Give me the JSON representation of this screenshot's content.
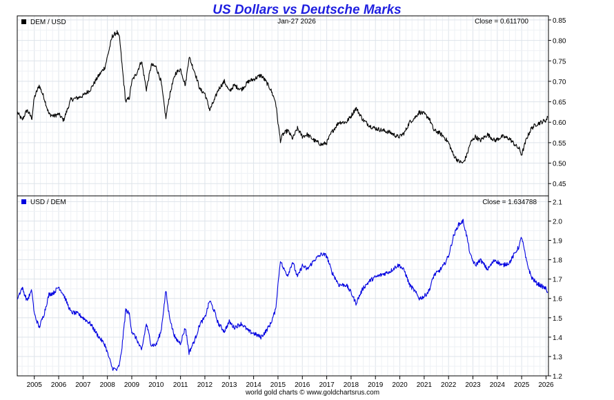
{
  "page": {
    "title": "US Dollars vs Deutsche Marks",
    "footer": "world gold charts © www.goldchartsrus.com",
    "title_color": "#1f1fe0"
  },
  "chart_data": [
    {
      "type": "line",
      "panel": "top",
      "legend": "DEM / USD",
      "date_label": "Jan-27  2026",
      "close_label": "Close = 0.611700",
      "color": "#000000",
      "ylim": [
        0.42,
        0.86
      ],
      "yticks": [
        0.45,
        0.5,
        0.55,
        0.6,
        0.65,
        0.7,
        0.75,
        0.8,
        0.85
      ],
      "ytick_labels": [
        "0.45",
        "0.50",
        "0.55",
        "0.60",
        "0.65",
        "0.70",
        "0.75",
        "0.80",
        "0.85"
      ],
      "xlim": [
        2004.3,
        2026.1
      ],
      "x": [
        2004.3,
        2004.5,
        2004.7,
        2004.9,
        2005.0,
        2005.2,
        2005.4,
        2005.6,
        2005.8,
        2006.0,
        2006.2,
        2006.5,
        2006.8,
        2007.0,
        2007.3,
        2007.6,
        2007.9,
        2008.0,
        2008.2,
        2008.4,
        2008.5,
        2008.6,
        2008.75,
        2008.9,
        2009.0,
        2009.2,
        2009.4,
        2009.6,
        2009.8,
        2010.0,
        2010.2,
        2010.4,
        2010.5,
        2010.65,
        2010.8,
        2011.0,
        2011.2,
        2011.35,
        2011.6,
        2011.8,
        2012.0,
        2012.2,
        2012.4,
        2012.55,
        2012.8,
        2013.0,
        2013.2,
        2013.5,
        2013.8,
        2014.0,
        2014.3,
        2014.5,
        2014.7,
        2014.9,
        2015.0,
        2015.1,
        2015.2,
        2015.4,
        2015.6,
        2015.8,
        2016.0,
        2016.2,
        2016.5,
        2016.8,
        2017.0,
        2017.2,
        2017.5,
        2017.8,
        2018.0,
        2018.2,
        2018.5,
        2018.8,
        2019.0,
        2019.3,
        2019.6,
        2019.9,
        2020.0,
        2020.2,
        2020.4,
        2020.6,
        2020.8,
        2021.0,
        2021.2,
        2021.4,
        2021.6,
        2021.8,
        2022.0,
        2022.2,
        2022.4,
        2022.6,
        2022.75,
        2022.9,
        2023.1,
        2023.3,
        2023.6,
        2023.9,
        2024.2,
        2024.5,
        2024.8,
        2024.9,
        2025.0,
        2025.2,
        2025.4,
        2025.6,
        2025.8,
        2026.0,
        2026.07
      ],
      "values": [
        0.625,
        0.605,
        0.63,
        0.61,
        0.66,
        0.69,
        0.66,
        0.62,
        0.615,
        0.62,
        0.605,
        0.655,
        0.66,
        0.665,
        0.68,
        0.71,
        0.735,
        0.76,
        0.81,
        0.82,
        0.805,
        0.74,
        0.65,
        0.66,
        0.7,
        0.72,
        0.75,
        0.68,
        0.74,
        0.735,
        0.7,
        0.61,
        0.65,
        0.69,
        0.72,
        0.73,
        0.69,
        0.76,
        0.72,
        0.68,
        0.67,
        0.63,
        0.655,
        0.68,
        0.7,
        0.675,
        0.69,
        0.68,
        0.7,
        0.705,
        0.715,
        0.7,
        0.68,
        0.65,
        0.6,
        0.555,
        0.57,
        0.58,
        0.56,
        0.585,
        0.565,
        0.57,
        0.555,
        0.545,
        0.55,
        0.575,
        0.6,
        0.6,
        0.615,
        0.635,
        0.605,
        0.59,
        0.585,
        0.58,
        0.575,
        0.565,
        0.565,
        0.575,
        0.6,
        0.61,
        0.625,
        0.62,
        0.61,
        0.58,
        0.575,
        0.565,
        0.55,
        0.52,
        0.505,
        0.5,
        0.52,
        0.55,
        0.565,
        0.555,
        0.57,
        0.555,
        0.565,
        0.56,
        0.54,
        0.535,
        0.52,
        0.56,
        0.585,
        0.595,
        0.6,
        0.605,
        0.6117
      ]
    },
    {
      "type": "line",
      "panel": "bottom",
      "legend": "USD / DEM",
      "close_label": "Close = 1.634788",
      "color": "#0000e0",
      "ylim": [
        1.2,
        2.13
      ],
      "yticks": [
        1.2,
        1.3,
        1.4,
        1.5,
        1.6,
        1.7,
        1.8,
        1.9,
        2.0,
        2.1
      ],
      "ytick_labels": [
        "1.2",
        "1.3",
        "1.4",
        "1.5",
        "1.6",
        "1.7",
        "1.8",
        "1.9",
        "2.0",
        "2.1"
      ],
      "xlim": [
        2004.3,
        2026.1
      ],
      "x": [
        2004.3,
        2004.5,
        2004.7,
        2004.9,
        2005.0,
        2005.2,
        2005.4,
        2005.6,
        2005.8,
        2006.0,
        2006.2,
        2006.5,
        2006.8,
        2007.0,
        2007.3,
        2007.6,
        2007.9,
        2008.0,
        2008.2,
        2008.4,
        2008.5,
        2008.6,
        2008.75,
        2008.9,
        2009.0,
        2009.2,
        2009.4,
        2009.6,
        2009.8,
        2010.0,
        2010.2,
        2010.4,
        2010.5,
        2010.65,
        2010.8,
        2011.0,
        2011.2,
        2011.35,
        2011.6,
        2011.8,
        2012.0,
        2012.2,
        2012.4,
        2012.55,
        2012.8,
        2013.0,
        2013.2,
        2013.5,
        2013.8,
        2014.0,
        2014.3,
        2014.5,
        2014.7,
        2014.9,
        2015.0,
        2015.1,
        2015.2,
        2015.4,
        2015.6,
        2015.8,
        2016.0,
        2016.2,
        2016.5,
        2016.8,
        2017.0,
        2017.2,
        2017.5,
        2017.8,
        2018.0,
        2018.2,
        2018.5,
        2018.8,
        2019.0,
        2019.3,
        2019.6,
        2019.9,
        2020.0,
        2020.2,
        2020.4,
        2020.6,
        2020.8,
        2021.0,
        2021.2,
        2021.4,
        2021.6,
        2021.8,
        2022.0,
        2022.2,
        2022.4,
        2022.6,
        2022.75,
        2022.9,
        2023.1,
        2023.3,
        2023.6,
        2023.9,
        2024.2,
        2024.5,
        2024.8,
        2024.9,
        2025.0,
        2025.2,
        2025.4,
        2025.6,
        2025.8,
        2026.0,
        2026.07
      ],
      "values": [
        1.6,
        1.655,
        1.59,
        1.64,
        1.52,
        1.45,
        1.52,
        1.62,
        1.63,
        1.66,
        1.62,
        1.53,
        1.52,
        1.5,
        1.47,
        1.41,
        1.36,
        1.32,
        1.24,
        1.23,
        1.26,
        1.35,
        1.54,
        1.52,
        1.43,
        1.39,
        1.33,
        1.47,
        1.36,
        1.36,
        1.43,
        1.64,
        1.54,
        1.45,
        1.39,
        1.37,
        1.45,
        1.32,
        1.39,
        1.47,
        1.5,
        1.59,
        1.53,
        1.47,
        1.43,
        1.48,
        1.45,
        1.47,
        1.43,
        1.42,
        1.4,
        1.43,
        1.47,
        1.54,
        1.67,
        1.8,
        1.76,
        1.72,
        1.79,
        1.71,
        1.77,
        1.75,
        1.8,
        1.83,
        1.82,
        1.74,
        1.67,
        1.67,
        1.63,
        1.575,
        1.655,
        1.695,
        1.71,
        1.725,
        1.74,
        1.77,
        1.77,
        1.74,
        1.67,
        1.64,
        1.6,
        1.61,
        1.64,
        1.72,
        1.74,
        1.77,
        1.82,
        1.92,
        1.98,
        2.0,
        1.92,
        1.82,
        1.77,
        1.8,
        1.75,
        1.8,
        1.77,
        1.785,
        1.85,
        1.87,
        1.92,
        1.79,
        1.71,
        1.68,
        1.665,
        1.65,
        1.6348
      ]
    }
  ],
  "x_axis": {
    "years": [
      2005,
      2006,
      2007,
      2008,
      2009,
      2010,
      2011,
      2012,
      2013,
      2014,
      2015,
      2016,
      2017,
      2018,
      2019,
      2020,
      2021,
      2022,
      2023,
      2024,
      2025,
      2026
    ],
    "labels": [
      "2005",
      "2006",
      "2007",
      "2008",
      "2009",
      "2010",
      "2011",
      "2012",
      "2013",
      "2014",
      "2015",
      "2016",
      "2017",
      "2018",
      "2019",
      "2020",
      "2021",
      "2022",
      "2023",
      "2024",
      "2025",
      "2026"
    ],
    "xlim": [
      2004.3,
      2026.1
    ]
  }
}
